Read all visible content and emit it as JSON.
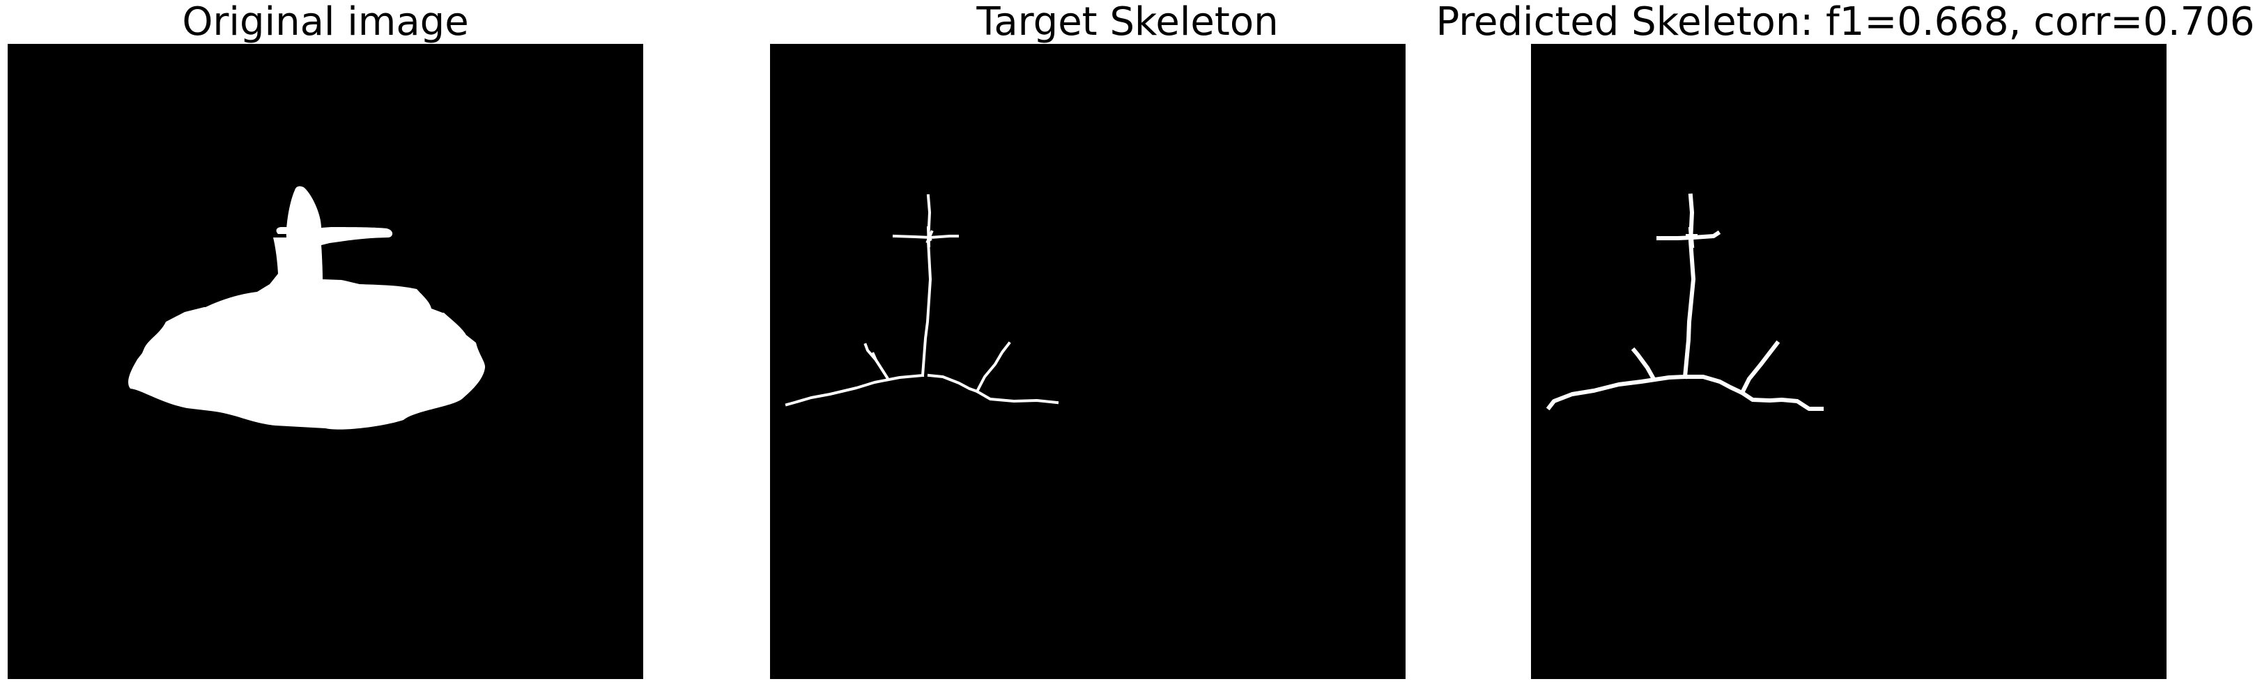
{
  "panels": [
    {
      "title": "Original image"
    },
    {
      "title": "Target Skeleton"
    },
    {
      "title": "Predicted Skeleton: f1=0.668, corr=0.706"
    }
  ],
  "colors": {
    "background": "#ffffff",
    "image_background": "#000000",
    "foreground": "#ffffff"
  }
}
